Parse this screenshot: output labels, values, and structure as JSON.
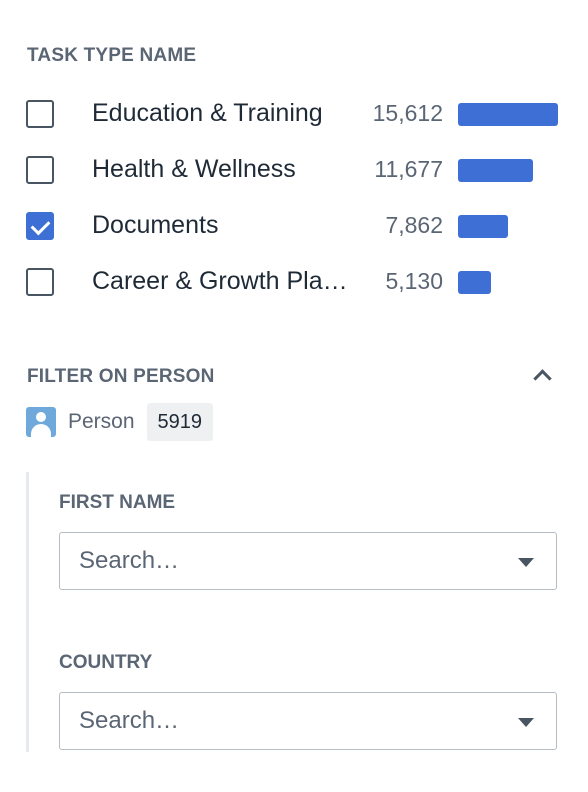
{
  "task_type": {
    "title": "TASK TYPE NAME",
    "bar_color": "#3e6fd4",
    "max_count": 15612,
    "items": [
      {
        "label": "Education & Training",
        "count": "15,612",
        "value": 15612,
        "checked": false
      },
      {
        "label": "Health & Wellness",
        "count": "11,677",
        "value": 11677,
        "checked": false
      },
      {
        "label": "Documents",
        "count": "7,862",
        "value": 7862,
        "checked": true
      },
      {
        "label": "Career & Growth Planning",
        "count": "5,130",
        "value": 5130,
        "checked": false
      }
    ]
  },
  "person_filter": {
    "title": "FILTER ON PERSON",
    "collapse_icon": "chevron-up-icon",
    "entity_icon": "person-icon",
    "entity_label": "Person",
    "entity_count": "5919",
    "fields": {
      "first_name": {
        "label": "FIRST NAME",
        "placeholder": "Search…"
      },
      "country": {
        "label": "COUNTRY",
        "placeholder": "Search…"
      }
    }
  }
}
